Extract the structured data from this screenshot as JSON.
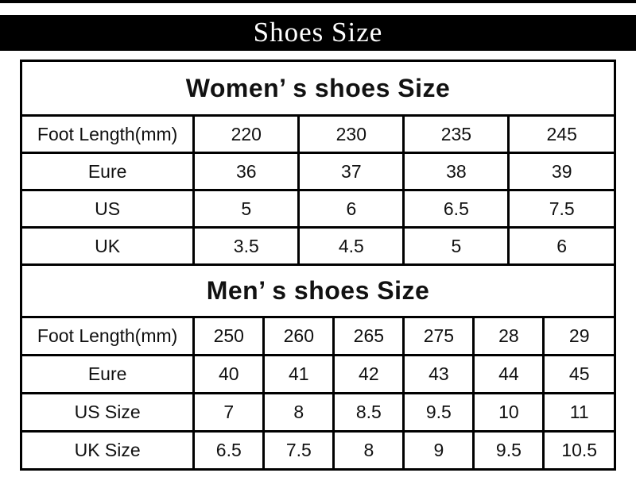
{
  "title_bar": {
    "label": "Shoes Size"
  },
  "colors": {
    "bar_bg": "#000000",
    "bar_text": "#ffffff",
    "table_border": "#000000",
    "text": "#111111",
    "page_bg": "#ffffff"
  },
  "chart_data": [
    {
      "type": "table",
      "title": "Women’ s shoes Size",
      "rows": [
        {
          "label": "Foot Length(mm)",
          "values": [
            "220",
            "230",
            "235",
            "245"
          ]
        },
        {
          "label": "Eure",
          "values": [
            "36",
            "37",
            "38",
            "39"
          ]
        },
        {
          "label": "US",
          "values": [
            "5",
            "6",
            "6.5",
            "7.5"
          ]
        },
        {
          "label": "UK",
          "values": [
            "3.5",
            "4.5",
            "5",
            "6"
          ]
        }
      ]
    },
    {
      "type": "table",
      "title": "Men’ s shoes Size",
      "rows": [
        {
          "label": "Foot Length(mm)",
          "values": [
            "250",
            "260",
            "265",
            "275",
            "28",
            "29"
          ]
        },
        {
          "label": "Eure",
          "values": [
            "40",
            "41",
            "42",
            "43",
            "44",
            "45"
          ]
        },
        {
          "label": "US Size",
          "values": [
            "7",
            "8",
            "8.5",
            "9.5",
            "10",
            "11"
          ]
        },
        {
          "label": "UK Size",
          "values": [
            "6.5",
            "7.5",
            "8",
            "9",
            "9.5",
            "10.5"
          ]
        }
      ]
    }
  ]
}
